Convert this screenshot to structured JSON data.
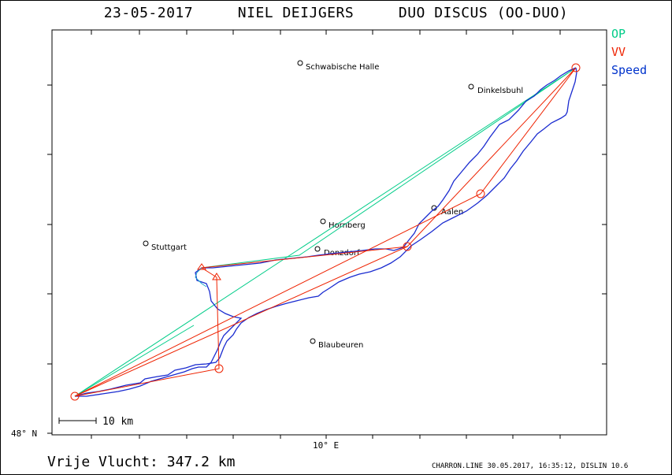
{
  "header": {
    "date": "23-05-2017",
    "pilot": "NIEL DEIJGERS",
    "glider": "DUO DISCUS (OO-DUO)"
  },
  "legend": {
    "op": {
      "label": "OP",
      "color": "#00cc88"
    },
    "vv": {
      "label": "VV",
      "color": "#ee2200"
    },
    "speed": {
      "label": "Speed",
      "color": "#0033cc"
    }
  },
  "map": {
    "lat_label": "48° N",
    "lon_label": "10° E",
    "scale_label": "10 km",
    "cities": [
      {
        "name": "Schwabische Halle"
      },
      {
        "name": "Dinkelsbuhl"
      },
      {
        "name": "Hornberg"
      },
      {
        "name": "Aalen"
      },
      {
        "name": "Stuttgart"
      },
      {
        "name": "Donzdorf"
      },
      {
        "name": "Blaubeuren"
      }
    ]
  },
  "footer": {
    "distance_label": "Vrije Vlucht:",
    "distance_value": "347.2 km",
    "credit": "CHARRON.LINE 30.05.2017, 16:35:12, DISLIN 10.6"
  }
}
